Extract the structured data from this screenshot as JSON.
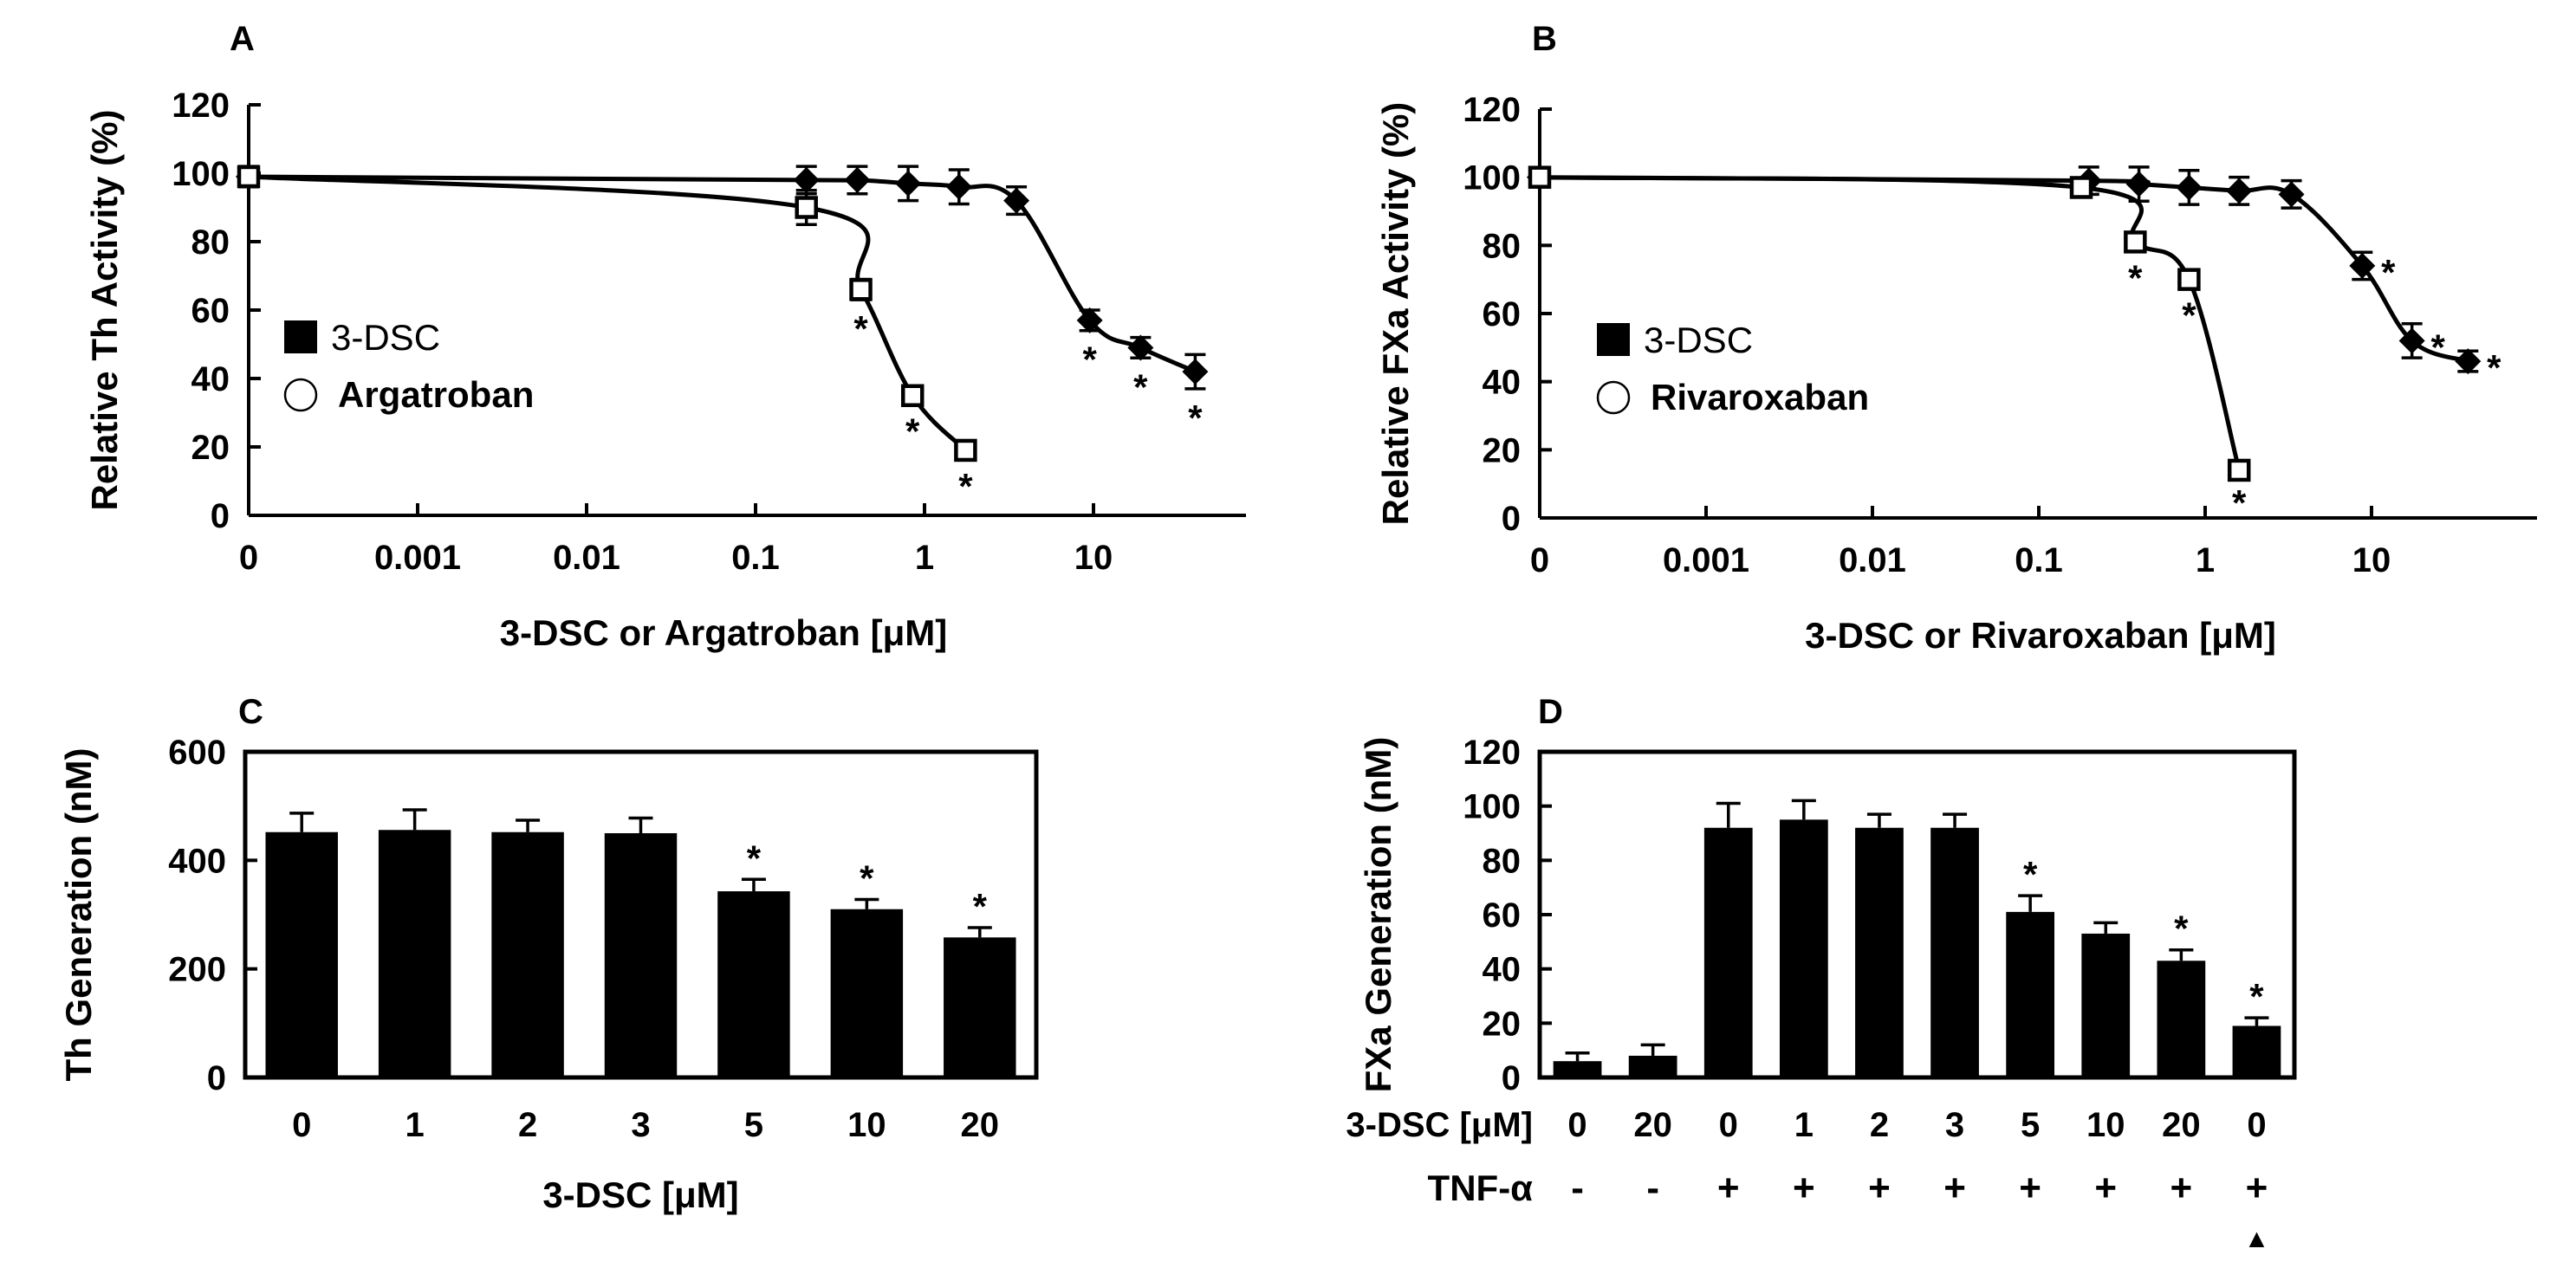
{
  "chart_data": [
    {
      "panel": "A",
      "type": "line",
      "xscale": "log",
      "xlabel": "3-DSC or Argatroban [μM]",
      "ylabel": "Relative Th Activity (%)",
      "ylim": [
        0,
        120
      ],
      "y_ticks": [
        0,
        20,
        40,
        60,
        80,
        100,
        120
      ],
      "x_ticks": [
        {
          "value": 0.0001,
          "label": "0"
        },
        {
          "value": 0.001,
          "label": "0.001"
        },
        {
          "value": 0.01,
          "label": "0.01"
        },
        {
          "value": 0.1,
          "label": "0.1"
        },
        {
          "value": 1,
          "label": "1"
        },
        {
          "value": 10,
          "label": "10"
        }
      ],
      "legend": {
        "placement": "left-middle",
        "entries": [
          "3-DSC",
          "Argatroban"
        ]
      },
      "series": [
        {
          "name": "3-DSC",
          "marker": "diamond-filled",
          "x": [
            0.0001,
            0.2,
            0.4,
            0.8,
            1.6,
            3.5,
            9.5,
            19,
            40
          ],
          "y": [
            99,
            98,
            98,
            97,
            96,
            92,
            57,
            49,
            42
          ],
          "err": [
            3,
            4,
            4,
            5,
            5,
            4,
            3,
            3,
            5
          ],
          "sig": [
            false,
            false,
            false,
            false,
            false,
            false,
            true,
            true,
            true
          ]
        },
        {
          "name": "Argatroban",
          "marker": "square-open",
          "x": [
            0.0001,
            0.2,
            0.42,
            0.85,
            1.75
          ],
          "y": [
            99,
            90,
            66,
            35,
            19
          ],
          "err": [
            0,
            5,
            3,
            2,
            2
          ],
          "sig": [
            false,
            false,
            true,
            true,
            true
          ]
        }
      ]
    },
    {
      "panel": "B",
      "type": "line",
      "xscale": "log",
      "xlabel": "3-DSC or Rivaroxaban [μM]",
      "ylabel": "Relative FXa Activity (%)",
      "ylim": [
        0,
        120
      ],
      "y_ticks": [
        0,
        20,
        40,
        60,
        80,
        100,
        120
      ],
      "x_ticks": [
        {
          "value": 0.0001,
          "label": "0"
        },
        {
          "value": 0.001,
          "label": "0.001"
        },
        {
          "value": 0.01,
          "label": "0.01"
        },
        {
          "value": 0.1,
          "label": "0.1"
        },
        {
          "value": 1,
          "label": "1"
        },
        {
          "value": 10,
          "label": "10"
        }
      ],
      "legend": {
        "placement": "left-middle",
        "entries": [
          "3-DSC",
          "Rivaroxaban"
        ]
      },
      "series": [
        {
          "name": "3-DSC",
          "marker": "diamond-filled",
          "x": [
            0.0001,
            0.2,
            0.4,
            0.8,
            1.6,
            3.3,
            8.8,
            17.5,
            38
          ],
          "y": [
            100,
            99,
            98,
            97,
            96,
            95,
            74,
            52,
            46
          ],
          "err": [
            2,
            4,
            5,
            5,
            4,
            4,
            4,
            5,
            3
          ],
          "sig": [
            false,
            false,
            false,
            false,
            false,
            false,
            true,
            true,
            true
          ]
        },
        {
          "name": "Rivaroxaban",
          "marker": "square-open",
          "x": [
            0.0001,
            0.18,
            0.38,
            0.8,
            1.6
          ],
          "y": [
            100,
            97,
            81,
            70,
            14
          ],
          "err": [
            0,
            2,
            2,
            2,
            1
          ],
          "sig": [
            false,
            false,
            true,
            true,
            true
          ]
        }
      ]
    },
    {
      "panel": "C",
      "type": "bar",
      "xlabel": "3-DSC [μM]",
      "ylabel": "Th Generation (nM)",
      "ylim": [
        0,
        600
      ],
      "y_ticks": [
        0,
        200,
        400,
        600
      ],
      "categories": [
        "0",
        "1",
        "2",
        "3",
        "5",
        "10",
        "20"
      ],
      "values": [
        452,
        456,
        452,
        450,
        343,
        310,
        258
      ],
      "err": [
        35,
        37,
        22,
        28,
        22,
        18,
        18
      ],
      "sig": [
        false,
        false,
        false,
        false,
        true,
        true,
        true
      ]
    },
    {
      "panel": "D",
      "type": "bar",
      "xlabel": "3-DSC [μM]",
      "ylabel": "FXa Generation (nM)",
      "ylim": [
        0,
        120
      ],
      "y_ticks": [
        0,
        20,
        40,
        60,
        80,
        100,
        120
      ],
      "categories": [
        "0",
        "20",
        "0",
        "1",
        "2",
        "3",
        "5",
        "10",
        "20",
        "0"
      ],
      "row2_label": "TNF-α",
      "row2_values": [
        "-",
        "-",
        "+",
        "+",
        "+",
        "+",
        "+",
        "+",
        "+",
        "+"
      ],
      "values": [
        6,
        8,
        92,
        95,
        92,
        92,
        61,
        53,
        43,
        19
      ],
      "err": [
        3,
        4,
        9,
        7,
        5,
        5,
        6,
        4,
        4,
        3
      ],
      "sig": [
        false,
        false,
        false,
        false,
        false,
        false,
        true,
        false,
        true,
        true
      ],
      "marked_bar": "▲"
    }
  ],
  "star": "*"
}
